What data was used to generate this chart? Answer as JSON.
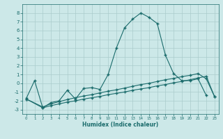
{
  "xlabel": "Humidex (Indice chaleur)",
  "bg_color": "#cce8e8",
  "grid_color": "#aacccc",
  "line_color": "#1a6b6b",
  "x_ticks": [
    0,
    1,
    2,
    3,
    4,
    5,
    6,
    7,
    8,
    9,
    10,
    11,
    12,
    13,
    14,
    15,
    16,
    17,
    18,
    19,
    20,
    21,
    22,
    23
  ],
  "y_ticks": [
    -3,
    -2,
    -1,
    0,
    1,
    2,
    3,
    4,
    5,
    6,
    7,
    8
  ],
  "ylim": [
    -3.5,
    9.0
  ],
  "xlim": [
    -0.5,
    23.5
  ],
  "line1_x": [
    0,
    1,
    2,
    3,
    4,
    5,
    6,
    7,
    8,
    9,
    10,
    11,
    12,
    13,
    14,
    15,
    16,
    17,
    18,
    19,
    20,
    21,
    22
  ],
  "line1_y": [
    -1.7,
    0.3,
    -2.8,
    -2.2,
    -2.0,
    -0.8,
    -1.8,
    -0.6,
    -0.5,
    -0.7,
    1.0,
    4.0,
    6.3,
    7.3,
    8.0,
    7.5,
    6.8,
    3.2,
    1.1,
    0.3,
    0.3,
    0.5,
    -1.4
  ],
  "line2_x": [
    0,
    2,
    3,
    4,
    5,
    6,
    7,
    8,
    9,
    10,
    11,
    12,
    13,
    14,
    15,
    16,
    17,
    18,
    19,
    20,
    21,
    22,
    23
  ],
  "line2_y": [
    -1.8,
    -2.7,
    -2.35,
    -2.1,
    -1.85,
    -1.65,
    -1.45,
    -1.3,
    -1.1,
    -0.9,
    -0.75,
    -0.55,
    -0.35,
    -0.15,
    0.0,
    0.2,
    0.4,
    0.55,
    0.75,
    0.9,
    1.1,
    0.5,
    -1.5
  ],
  "line3_x": [
    0,
    2,
    3,
    4,
    5,
    6,
    7,
    8,
    9,
    10,
    11,
    12,
    13,
    14,
    15,
    16,
    17,
    18,
    19,
    20,
    21,
    22,
    23
  ],
  "line3_y": [
    -1.8,
    -2.8,
    -2.55,
    -2.35,
    -2.15,
    -2.0,
    -1.8,
    -1.65,
    -1.5,
    -1.3,
    -1.15,
    -1.0,
    -0.8,
    -0.65,
    -0.5,
    -0.3,
    -0.15,
    0.05,
    0.2,
    0.4,
    0.6,
    0.8,
    -1.5
  ]
}
